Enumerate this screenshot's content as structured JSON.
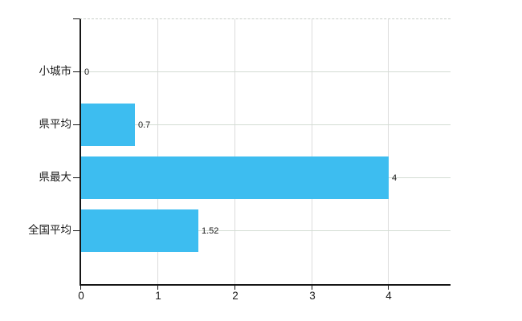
{
  "chart_data": {
    "type": "bar",
    "orientation": "horizontal",
    "title": "",
    "categories": [
      "小城市",
      "県平均",
      "県最大",
      "全国平均"
    ],
    "values": [
      0,
      0.7,
      4,
      1.52
    ],
    "value_labels": [
      "0",
      "0.7",
      "4",
      "1.52"
    ],
    "x_ticks": [
      0,
      1,
      2,
      3,
      4
    ],
    "x_tick_labels": [
      "0",
      "1",
      "2",
      "3",
      "4"
    ],
    "xlim": [
      0,
      4.8
    ],
    "grid": true,
    "legend": false,
    "bar_color": "#3dbdf0",
    "axis_color": "#161616",
    "gridline_color": "#d8dcd8",
    "label_color": "#1b1b1b"
  }
}
